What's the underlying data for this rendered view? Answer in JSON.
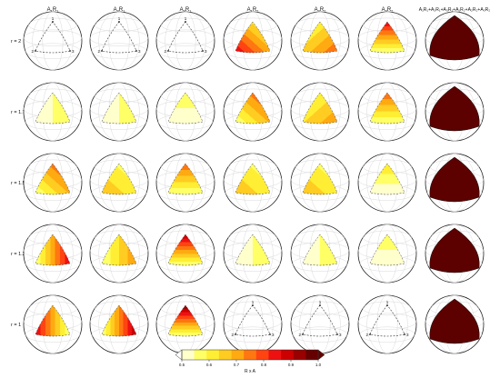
{
  "columns": [
    {
      "label": "A",
      "sub1": "1",
      "mid": "R",
      "sub2": "1"
    },
    {
      "label": "A",
      "sub1": "2",
      "mid": "R",
      "sub2": "1"
    },
    {
      "label": "A",
      "sub1": "3",
      "mid": "R",
      "sub2": "1"
    },
    {
      "label": "A",
      "sub1": "1",
      "mid": "R",
      "sub2": "2"
    },
    {
      "label": "A",
      "sub1": "2",
      "mid": "R",
      "sub2": "2"
    },
    {
      "label": "A",
      "sub1": "3",
      "mid": "R",
      "sub2": "2"
    }
  ],
  "last_column_label": "A₁R₁+A₂R₁+A₃R₁+A₁R₂+A₂R₂+A₃R₂",
  "rows": [
    {
      "label": "r = 2"
    },
    {
      "label": "r = 1.75"
    },
    {
      "label": "r = 1.5"
    },
    {
      "label": "r = 1.25"
    },
    {
      "label": "r = 1"
    }
  ],
  "vertex_labels": {
    "top": "1",
    "left": "2",
    "right": "3"
  },
  "panels": [
    [
      "none",
      "none",
      "none",
      "right-bl",
      "right-br",
      "top"
    ],
    [
      "faint-left",
      "faint-left",
      "faint-top",
      "left-br",
      "mid-br",
      "top-mid"
    ],
    [
      "left-br",
      "left-bl",
      "top-mid",
      "left-bl",
      "left-bl",
      "top-faint"
    ],
    [
      "left-strong",
      "left-mid",
      "top-strong",
      "faint-left",
      "faint-left",
      "faint-top"
    ],
    [
      "left-strong2",
      "right-strong",
      "top-strong2",
      "none",
      "none",
      "none"
    ]
  ],
  "sum_color": "#5c0000",
  "colorbar": {
    "label": "R x A",
    "ticks": [
      "0.5",
      "0.6",
      "0.7",
      "0.8",
      "0.9",
      "1.0"
    ],
    "min_label": "",
    "colors": [
      "#ffffcc",
      "#ffff66",
      "#ffee33",
      "#ffcc22",
      "#ffaa11",
      "#ff7711",
      "#ff4411",
      "#ee1111",
      "#cc0000",
      "#990000",
      "#660000"
    ]
  }
}
